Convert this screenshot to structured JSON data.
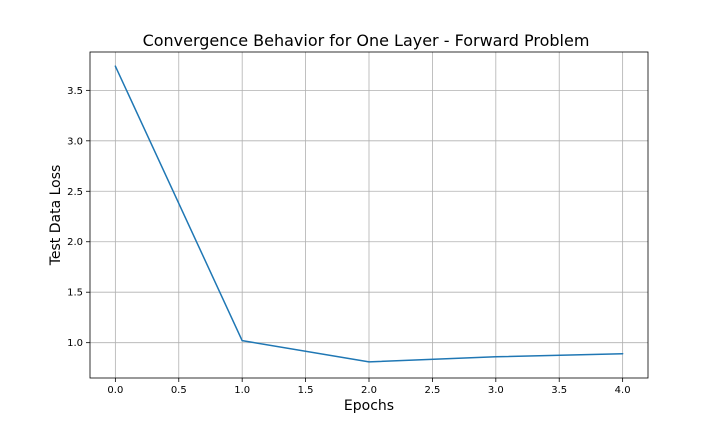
{
  "chart_data": {
    "type": "line",
    "title": "Convergence Behavior for One Layer - Forward Problem",
    "xlabel": "Epochs",
    "ylabel": "Test Data Loss",
    "x": [
      0,
      1,
      2,
      3,
      4
    ],
    "series": [
      {
        "values": [
          3.74,
          1.02,
          0.81,
          0.86,
          0.89
        ]
      }
    ],
    "xlim": [
      -0.2,
      4.2
    ],
    "ylim": [
      0.65,
      3.88
    ],
    "xticks": [
      "0.0",
      "0.5",
      "1.0",
      "1.5",
      "2.0",
      "2.5",
      "3.0",
      "3.5",
      "4.0"
    ],
    "yticks": [
      "1.0",
      "1.5",
      "2.0",
      "2.5",
      "3.0",
      "3.5"
    ],
    "grid": true,
    "colors": {
      "line": "#1f77b4",
      "grid": "#b0b0b0",
      "axes": "#000000"
    }
  }
}
